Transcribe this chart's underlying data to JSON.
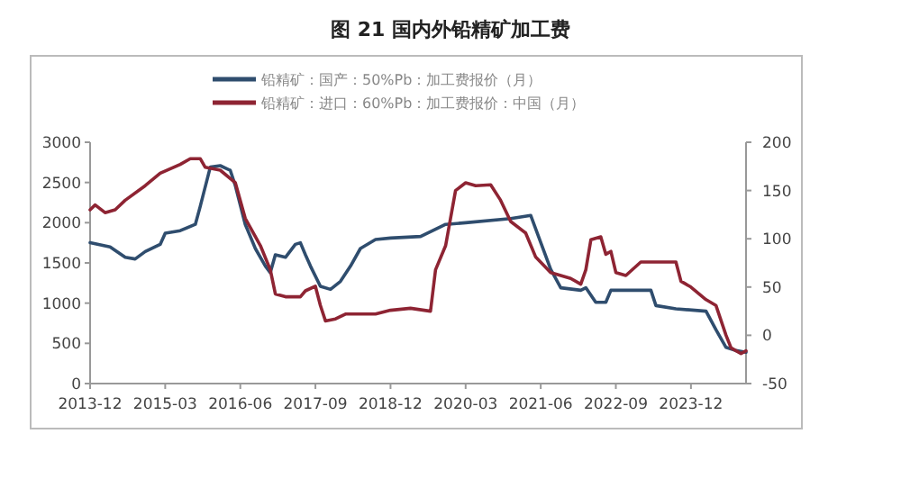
{
  "chart_data": {
    "type": "line",
    "title": "图 21 国内外铅精矿加工费",
    "legend": "top",
    "grid": false,
    "xlim": [
      "2013-12",
      "2024-11"
    ],
    "xticks": [
      "2013-12",
      "2015-03",
      "2016-06",
      "2017-09",
      "2018-12",
      "2020-03",
      "2021-06",
      "2022-09",
      "2023-12"
    ],
    "ylim": [
      0,
      3000
    ],
    "yticks": [
      0,
      500,
      1000,
      1500,
      2000,
      2500,
      3000
    ],
    "y2lim": [
      -50,
      200
    ],
    "y2ticks": [
      -50,
      0,
      50,
      100,
      150,
      200
    ],
    "series": [
      {
        "name": "铅精矿：国产：50%Pb：加工费报价（月）",
        "color": "#2f4d6e",
        "x": [
          "2013-12",
          "2014-04",
          "2014-07",
          "2014-09",
          "2014-11",
          "2015-02",
          "2015-03",
          "2015-06",
          "2015-09",
          "2015-10",
          "2015-12",
          "2016-02",
          "2016-04",
          "2016-05",
          "2016-07",
          "2016-09",
          "2016-11",
          "2016-12",
          "2017-01",
          "2017-03",
          "2017-05",
          "2017-06",
          "2017-07",
          "2017-08",
          "2017-10",
          "2017-12",
          "2018-02",
          "2018-04",
          "2018-06",
          "2018-09",
          "2018-12",
          "2019-06",
          "2019-11",
          "2020-03",
          "2020-12",
          "2021-04",
          "2021-08",
          "2021-10",
          "2022-02",
          "2022-03",
          "2022-05",
          "2022-07",
          "2022-08",
          "2023-04",
          "2023-05",
          "2023-09",
          "2024-03",
          "2024-05",
          "2024-07",
          "2024-09",
          "2024-11"
        ],
        "values": [
          1750,
          1700,
          1570,
          1550,
          1640,
          1730,
          1870,
          1900,
          1980,
          2200,
          2690,
          2710,
          2650,
          2460,
          1980,
          1680,
          1460,
          1380,
          1600,
          1570,
          1730,
          1750,
          1600,
          1460,
          1210,
          1170,
          1270,
          1460,
          1680,
          1790,
          1810,
          1830,
          1980,
          2000,
          2050,
          2090,
          1420,
          1190,
          1160,
          1190,
          1010,
          1010,
          1160,
          1160,
          970,
          930,
          900,
          670,
          450,
          410,
          390
        ]
      },
      {
        "name": "铅精矿：进口：60%Pb：加工费报价：中国（月）",
        "color": "#8e2433",
        "axis": "y2",
        "x": [
          "2013-12",
          "2014-01",
          "2014-03",
          "2014-05",
          "2014-07",
          "2014-11",
          "2015-02",
          "2015-06",
          "2015-08",
          "2015-10",
          "2015-11",
          "2016-02",
          "2016-05",
          "2016-07",
          "2016-10",
          "2016-12",
          "2017-01",
          "2017-03",
          "2017-06",
          "2017-07",
          "2017-09",
          "2017-10",
          "2017-11",
          "2018-01",
          "2018-03",
          "2018-09",
          "2018-12",
          "2019-04",
          "2019-08",
          "2019-09",
          "2019-11",
          "2020-01",
          "2020-03",
          "2020-05",
          "2020-08",
          "2020-10",
          "2020-12",
          "2021-03",
          "2021-05",
          "2021-08",
          "2021-10",
          "2021-12",
          "2022-02",
          "2022-03",
          "2022-04",
          "2022-06",
          "2022-07",
          "2022-08",
          "2022-09",
          "2022-11",
          "2023-02",
          "2023-09",
          "2023-10",
          "2023-12",
          "2024-03",
          "2024-05",
          "2024-07",
          "2024-08",
          "2024-10",
          "2024-11"
        ],
        "values": [
          130,
          135,
          127,
          130,
          140,
          155,
          168,
          177,
          183,
          183,
          174,
          171,
          158,
          121,
          93,
          68,
          43,
          40,
          40,
          46,
          51,
          31,
          15,
          17,
          22,
          22,
          26,
          28,
          25,
          68,
          93,
          150,
          158,
          155,
          156,
          140,
          118,
          106,
          81,
          65,
          62,
          59,
          53,
          68,
          99,
          102,
          84,
          87,
          65,
          62,
          76,
          76,
          56,
          50,
          37,
          31,
          0,
          -13,
          -19,
          -16
        ]
      }
    ]
  }
}
